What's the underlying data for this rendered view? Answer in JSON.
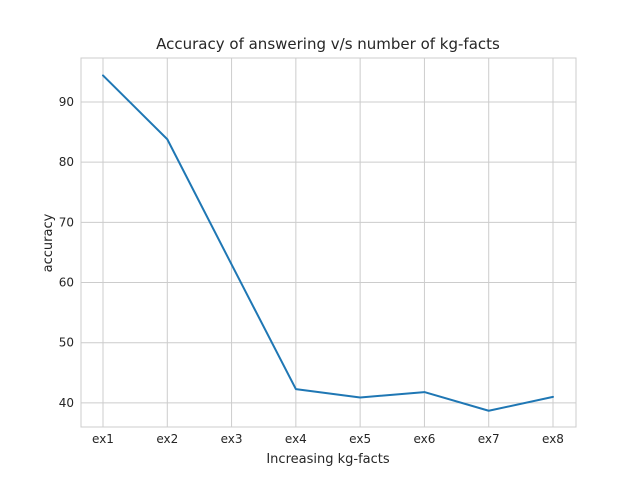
{
  "chart_data": {
    "type": "line",
    "title": "Accuracy of answering v/s number of kg-facts",
    "xlabel": "Increasing kg-facts",
    "ylabel": "accuracy",
    "categories": [
      "ex1",
      "ex2",
      "ex3",
      "ex4",
      "ex5",
      "ex6",
      "ex7",
      "ex8"
    ],
    "series": [
      {
        "values": [
          94.4,
          83.8,
          63.0,
          42.3,
          40.9,
          41.8,
          38.7,
          41.0
        ],
        "color": "#1f77b4"
      }
    ],
    "yticks": [
      40,
      50,
      60,
      70,
      80,
      90
    ],
    "ylim": [
      36.0,
      97.3
    ],
    "grid": true,
    "style": {
      "grid_color": "#cccccc",
      "frame_color": "#cccccc",
      "text_color": "#262626"
    }
  }
}
